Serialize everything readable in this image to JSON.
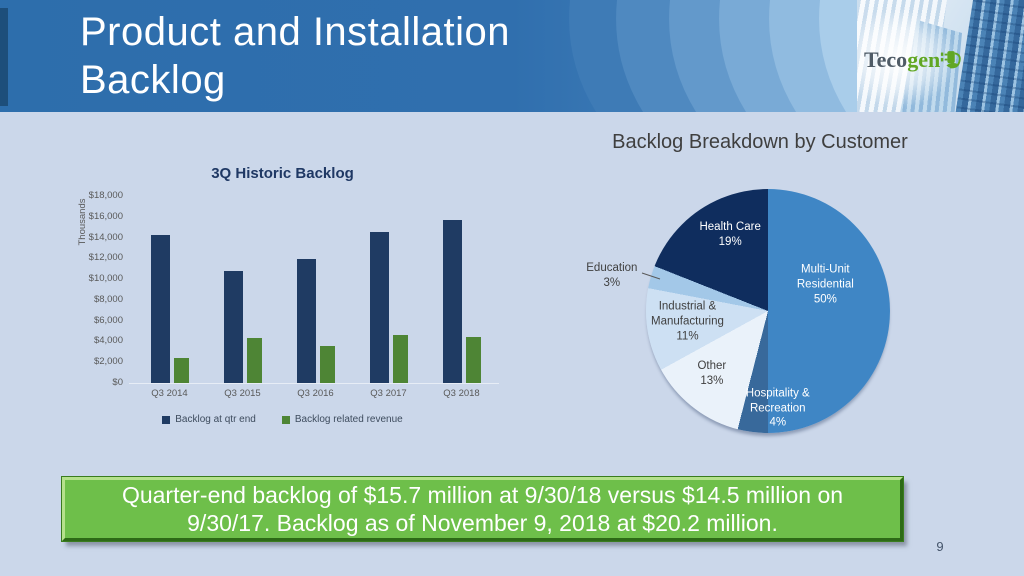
{
  "slide": {
    "background_color": "#cbd7ea",
    "page_number": "9"
  },
  "header": {
    "title_lines": [
      "Product and Installation",
      "Backlog"
    ],
    "bar_color": "#2e6fad",
    "accent_strip_color": "#1d4e7a"
  },
  "logo": {
    "brand_dark": "Teco",
    "brand_green": "gen",
    "icon": "plug-leaf-icon",
    "green_color": "#61a724",
    "dark_color": "#4f5b66"
  },
  "callout": {
    "lines": [
      "Quarter-end backlog of $15.7 million at 9/30/18 versus $14.5 million on",
      "9/30/17. Backlog as of November 9, 2018 at $20.2 million."
    ],
    "fill_color": "#6ebf4a",
    "text_color": "#ffffff"
  },
  "chart_data": [
    {
      "id": "historic_backlog",
      "type": "bar",
      "title": "3Q Historic Backlog",
      "xlabel": "",
      "ylabel": "Thousands",
      "categories": [
        "Q3 2014",
        "Q3 2015",
        "Q3 2016",
        "Q3 2017",
        "Q3 2018"
      ],
      "series": [
        {
          "name": "Backlog at qtr end",
          "color": "#1f3b63",
          "values": [
            14200,
            10800,
            11900,
            14500,
            15700
          ]
        },
        {
          "name": "Backlog related revenue",
          "color": "#4e8535",
          "values": [
            2400,
            4300,
            3600,
            4600,
            4400
          ]
        }
      ],
      "ylim": [
        0,
        18000
      ],
      "ytick_step": 2000,
      "ytick_labels": [
        "$0",
        "$2,000",
        "$4,000",
        "$6,000",
        "$8,000",
        "$10,000",
        "$12,000",
        "$14,000",
        "$16,000",
        "$18,000"
      ],
      "grid": false,
      "legend_position": "bottom",
      "values_unit": "USD thousands"
    },
    {
      "id": "backlog_breakdown",
      "type": "pie",
      "title": "Backlog Breakdown by Customer",
      "start_angle_deg": 0,
      "direction": "clockwise",
      "slices": [
        {
          "label": "Multi-Unit Residential",
          "pct": 50,
          "color": "#3f86c5",
          "text_color": "#ffffff"
        },
        {
          "label": "Hospitality & Recreation",
          "pct": 4,
          "color": "#38699b",
          "text_color": "#ffffff"
        },
        {
          "label": "Other",
          "pct": 13,
          "color": "#eaf2fa",
          "text_color": "#404040"
        },
        {
          "label": "Industrial & Manufacturing",
          "pct": 11,
          "color": "#cde0f3",
          "text_color": "#404040"
        },
        {
          "label": "Education",
          "pct": 3,
          "color": "#a3c8e8",
          "text_color": "#404040",
          "label_outside": true
        },
        {
          "label": "Health Care",
          "pct": 19,
          "color": "#0f2d5e",
          "text_color": "#ffffff"
        }
      ]
    }
  ]
}
